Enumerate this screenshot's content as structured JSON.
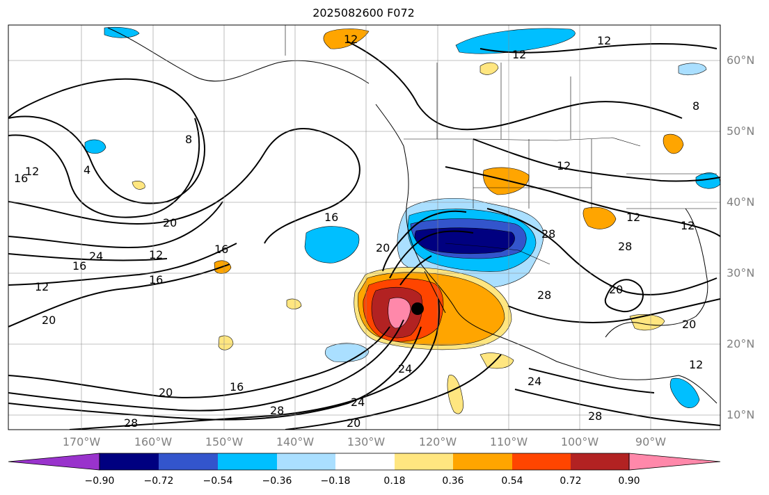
{
  "title": "2025082600 F072",
  "lat_labels": [
    "60°N",
    "50°N",
    "40°N",
    "30°N",
    "20°N",
    "10°N"
  ],
  "lon_labels": [
    "170°W",
    "160°W",
    "150°W",
    "140°W",
    "130°W",
    "120°W",
    "110°W",
    "100°W",
    "90°W"
  ],
  "colorbar": {
    "colors": [
      "#9933cc",
      "#000080",
      "#3355cc",
      "#00bfff",
      "#aadfff",
      "#ffffff",
      "#ffe680",
      "#ffa500",
      "#ff4500",
      "#b22222",
      "#ff88aa"
    ],
    "tick_labels": [
      "−0.90",
      "−0.72",
      "−0.54",
      "−0.36",
      "−0.18",
      "0.18",
      "0.36",
      "0.54",
      "0.72",
      "0.90"
    ]
  },
  "contour_labels": [
    "12",
    "12",
    "12",
    "12",
    "12",
    "8",
    "8",
    "4",
    "16",
    "12",
    "16",
    "20",
    "24",
    "16",
    "16",
    "12",
    "12",
    "16",
    "20",
    "20",
    "16",
    "20",
    "24",
    "28",
    "24",
    "20",
    "28",
    "28",
    "28",
    "28",
    "28",
    "24",
    "20",
    "20",
    "12",
    "12"
  ],
  "map_region": {
    "lon_range": [
      -179,
      -80
    ],
    "lat_range": [
      8,
      65
    ],
    "grid": true,
    "center_marker": {
      "lon": -122.3,
      "lat": 25.0
    }
  }
}
